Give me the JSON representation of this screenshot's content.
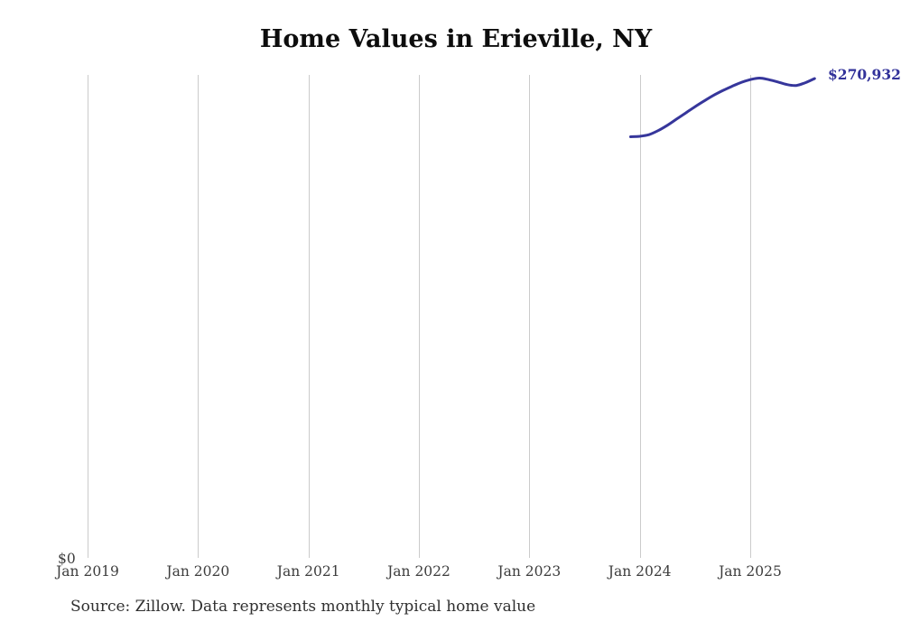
{
  "header": {
    "title": "Home Values in Erieville, NY"
  },
  "footer": {
    "source_note": "Source: Zillow. Data represents monthly typical home value"
  },
  "chart": {
    "y_zero_label": "$0",
    "end_value_label": "$270,932",
    "line_color": "#36369b",
    "grid_color": "#cbcbcb",
    "tick_text_color": "#3d3d3d"
  },
  "chart_data": {
    "type": "line",
    "title": "Home Values in Erieville, NY",
    "xlabel": "",
    "ylabel": "",
    "x_tick_labels": [
      "Jan 2019",
      "Jan 2020",
      "Jan 2021",
      "Jan 2022",
      "Jan 2023",
      "Jan 2024",
      "Jan 2025"
    ],
    "ylim": [
      0,
      280000
    ],
    "grid": "vertical-only",
    "legend": "none",
    "series": [
      {
        "name": "Monthly typical home value",
        "end_label": "$270,932",
        "x": [
          "2023-12",
          "2024-01",
          "2024-02",
          "2024-03",
          "2024-04",
          "2024-05",
          "2024-06",
          "2024-07",
          "2024-08",
          "2024-09",
          "2024-10",
          "2024-11",
          "2024-12",
          "2025-01",
          "2025-02",
          "2025-03",
          "2025-04",
          "2025-05",
          "2025-06",
          "2025-07",
          "2025-08"
        ],
        "values": [
          238000,
          238300,
          239200,
          241500,
          244500,
          248000,
          251500,
          255000,
          258300,
          261400,
          264100,
          266500,
          268700,
          270300,
          271200,
          270300,
          269000,
          267500,
          267000,
          268600,
          270932
        ]
      }
    ]
  }
}
